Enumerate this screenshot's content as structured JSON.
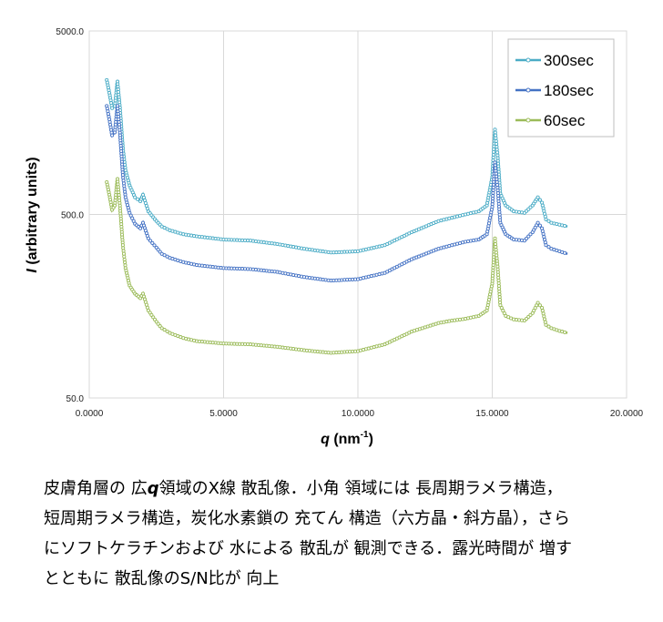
{
  "chart_data": {
    "type": "line",
    "title": "",
    "ylabel_italic": "I",
    "ylabel_rest": " (arbitrary units)",
    "xlabel_italic": "q",
    "xlabel_unit": " (nm",
    "xlabel_sup": "-1",
    "xlabel_close": ")",
    "xlim": [
      0,
      20
    ],
    "ylim": [
      50,
      5000
    ],
    "yscale": "log",
    "grid": true,
    "legend_position": "top-right",
    "x_ticks": [
      "0.0000",
      "5.0000",
      "10.0000",
      "15.0000",
      "20.0000"
    ],
    "y_ticks": [
      "50.0",
      "500.0",
      "5000.0"
    ],
    "series": [
      {
        "name": "300sec",
        "color": "#4bacc6",
        "x": [
          0.65,
          0.75,
          0.85,
          0.95,
          1.05,
          1.15,
          1.25,
          1.35,
          1.5,
          1.7,
          1.9,
          2.0,
          2.2,
          2.5,
          2.7,
          3.0,
          3.5,
          4.0,
          5.0,
          6.0,
          7.0,
          8.0,
          9.0,
          10.0,
          11.0,
          12.0,
          13.0,
          13.5,
          14.0,
          14.5,
          14.8,
          15.0,
          15.1,
          15.2,
          15.3,
          15.5,
          15.8,
          16.2,
          16.5,
          16.7,
          16.85,
          17.0,
          17.2,
          17.5,
          17.8
        ],
        "y": [
          2700,
          2300,
          1900,
          1950,
          2650,
          1850,
          1150,
          870,
          720,
          620,
          590,
          640,
          520,
          460,
          430,
          410,
          390,
          380,
          365,
          360,
          345,
          325,
          310,
          315,
          340,
          400,
          460,
          480,
          500,
          520,
          560,
          800,
          1450,
          1050,
          650,
          560,
          520,
          510,
          560,
          620,
          580,
          470,
          450,
          440,
          430
        ]
      },
      {
        "name": "180sec",
        "color": "#4472c4",
        "x": [
          0.65,
          0.75,
          0.85,
          0.95,
          1.05,
          1.15,
          1.25,
          1.35,
          1.5,
          1.7,
          1.9,
          2.0,
          2.2,
          2.5,
          2.7,
          3.0,
          3.5,
          4.0,
          5.0,
          6.0,
          7.0,
          8.0,
          9.0,
          10.0,
          11.0,
          12.0,
          13.0,
          13.5,
          14.0,
          14.5,
          14.8,
          15.0,
          15.1,
          15.2,
          15.3,
          15.5,
          15.8,
          16.2,
          16.5,
          16.7,
          16.85,
          17.0,
          17.2,
          17.5,
          17.8
        ],
        "y": [
          1950,
          1650,
          1350,
          1400,
          1950,
          1350,
          820,
          620,
          510,
          445,
          420,
          450,
          370,
          330,
          305,
          290,
          275,
          265,
          255,
          252,
          243,
          228,
          218,
          222,
          240,
          285,
          325,
          340,
          355,
          365,
          390,
          550,
          960,
          700,
          450,
          390,
          365,
          360,
          400,
          450,
          420,
          340,
          325,
          315,
          305
        ]
      },
      {
        "name": "60sec",
        "color": "#9bbb59",
        "x": [
          0.65,
          0.75,
          0.85,
          0.95,
          1.05,
          1.15,
          1.25,
          1.35,
          1.5,
          1.7,
          1.9,
          2.0,
          2.2,
          2.5,
          2.7,
          3.0,
          3.5,
          4.0,
          5.0,
          6.0,
          7.0,
          8.0,
          9.0,
          10.0,
          11.0,
          12.0,
          13.0,
          13.5,
          14.0,
          14.5,
          14.8,
          15.0,
          15.1,
          15.2,
          15.3,
          15.5,
          15.8,
          16.2,
          16.5,
          16.7,
          16.85,
          17.0,
          17.2,
          17.5,
          17.8
        ],
        "y": [
          750,
          640,
          530,
          560,
          780,
          540,
          340,
          255,
          205,
          185,
          175,
          185,
          150,
          130,
          120,
          113,
          106,
          102,
          99,
          98,
          95,
          91,
          88,
          90,
          98,
          115,
          128,
          132,
          135,
          140,
          150,
          210,
          370,
          260,
          160,
          140,
          134,
          132,
          145,
          165,
          155,
          125,
          120,
          116,
          113
        ]
      }
    ]
  },
  "caption": {
    "line1_a": "皮膚角層の 広",
    "line1_q": "q",
    "line1_b": "領域のX線 散乱像．小角 領域には 長周期ラメラ構造，",
    "line2": "短周期ラメラ構造，炭化水素鎖の 充てん 構造（六方晶・斜方晶），さら",
    "line3": "にソフトケラチンおよび 水による 散乱が 観測できる．露光時間が 増す",
    "line4": "とともに 散乱像のS/N比が 向上"
  }
}
